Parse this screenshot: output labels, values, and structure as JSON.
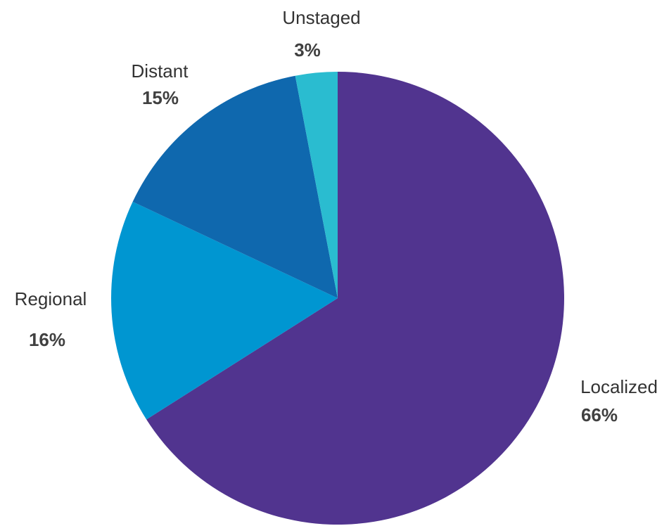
{
  "chart_data": {
    "type": "pie",
    "start_angle_deg": 0,
    "direction": "clockwise",
    "slices": [
      {
        "label": "Localized",
        "value": 66,
        "value_label": "66%",
        "color": "#51348F"
      },
      {
        "label": "Regional",
        "value": 16,
        "value_label": "16%",
        "color": "#0096D1"
      },
      {
        "label": "Distant",
        "value": 15,
        "value_label": "15%",
        "color": "#0F68AE"
      },
      {
        "label": "Unstaged",
        "value": 3,
        "value_label": "3%",
        "color": "#2ABCD0"
      }
    ],
    "legend": "none",
    "grid": false
  }
}
